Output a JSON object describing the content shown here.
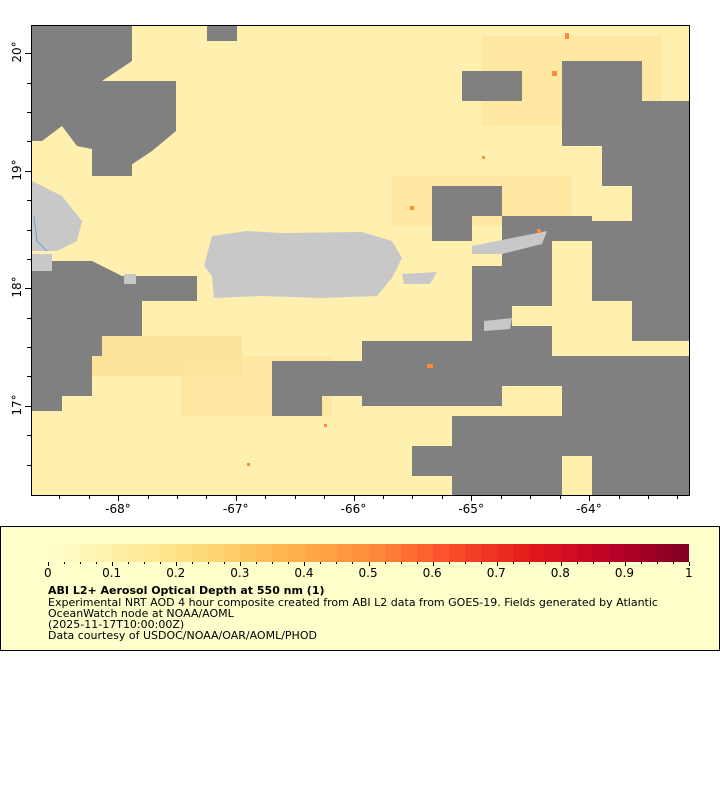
{
  "map": {
    "lon_range": [
      -68.74,
      -63.16
    ],
    "lat_range": [
      16.25,
      20.24
    ],
    "lon_ticks": [
      "-68°",
      "-67°",
      "-66°",
      "-65°",
      "-64°"
    ],
    "lat_ticks": [
      "20°",
      "19°",
      "18°",
      "17°"
    ],
    "colors": {
      "cloud": "#808080",
      "land": "#c8c8c8",
      "low_aod": "#fff0b0",
      "coast_line": "#6aa0d8"
    }
  },
  "legend": {
    "colorbar": {
      "min": 0,
      "max": 1,
      "steps": 40,
      "tick_labels": [
        "0",
        "0.1",
        "0.2",
        "0.3",
        "0.4",
        "0.5",
        "0.6",
        "0.7",
        "0.8",
        "0.9",
        "1"
      ],
      "palette": [
        "#ffffcc",
        "#ffeda0",
        "#fed976",
        "#feb24c",
        "#fd8d3c",
        "#fc4e2a",
        "#e31a1c",
        "#bd0026",
        "#800026"
      ]
    },
    "title": "ABI L2+ Aerosol Optical Depth at 550 nm (1)",
    "description_line1": "Experimental NRT AOD 4 hour composite created from ABI L2 data from GOES-19. Fields generated by Atlantic",
    "description_line2": "OceanWatch node at NOAA/AOML",
    "time": "(2025-11-17T10:00:00Z)",
    "credit": "Data courtesy of USDOC/NOAA/OAR/AOML/PHOD"
  }
}
